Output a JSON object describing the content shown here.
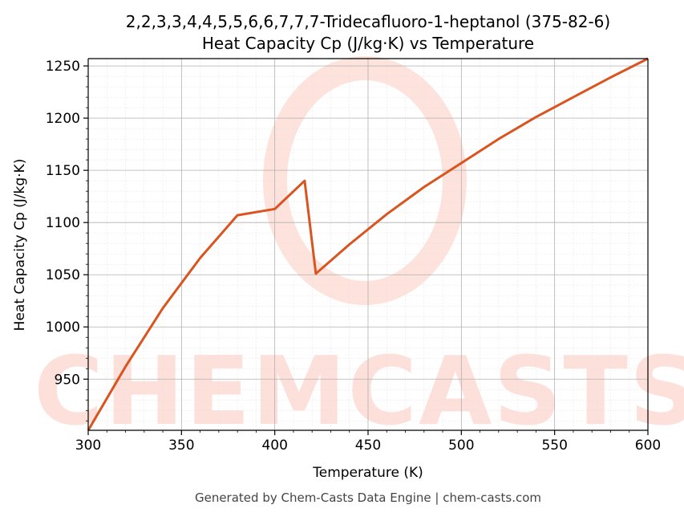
{
  "chart_data": {
    "type": "line",
    "title": "2,2,3,3,4,4,5,5,6,6,7,7,7-Tridecafluoro-1-heptanol (375-82-6)",
    "subtitle": "Heat Capacity Cp (J/kg·K) vs Temperature",
    "xlabel": "Temperature (K)",
    "ylabel": "Heat Capacity Cp (J/kg·K)",
    "xlim": [
      300,
      600
    ],
    "ylim": [
      901,
      1257
    ],
    "x_ticks": [
      300,
      350,
      400,
      450,
      500,
      550,
      600
    ],
    "y_ticks": [
      950,
      1000,
      1050,
      1100,
      1150,
      1200,
      1250
    ],
    "grid": true,
    "line_color": "#d9541e",
    "series": [
      {
        "x": [
          300,
          320,
          340,
          360,
          380,
          400,
          416,
          422,
          440,
          460,
          480,
          500,
          520,
          540,
          560,
          580,
          600
        ],
        "y": [
          901,
          962,
          1018,
          1066,
          1107,
          1113,
          1140,
          1051,
          1079,
          1108,
          1134,
          1157,
          1180,
          1201,
          1220,
          1239,
          1257
        ]
      }
    ]
  },
  "watermark": "CHEMCASTS",
  "footer": "Generated by Chem-Casts Data Engine | chem-casts.com"
}
